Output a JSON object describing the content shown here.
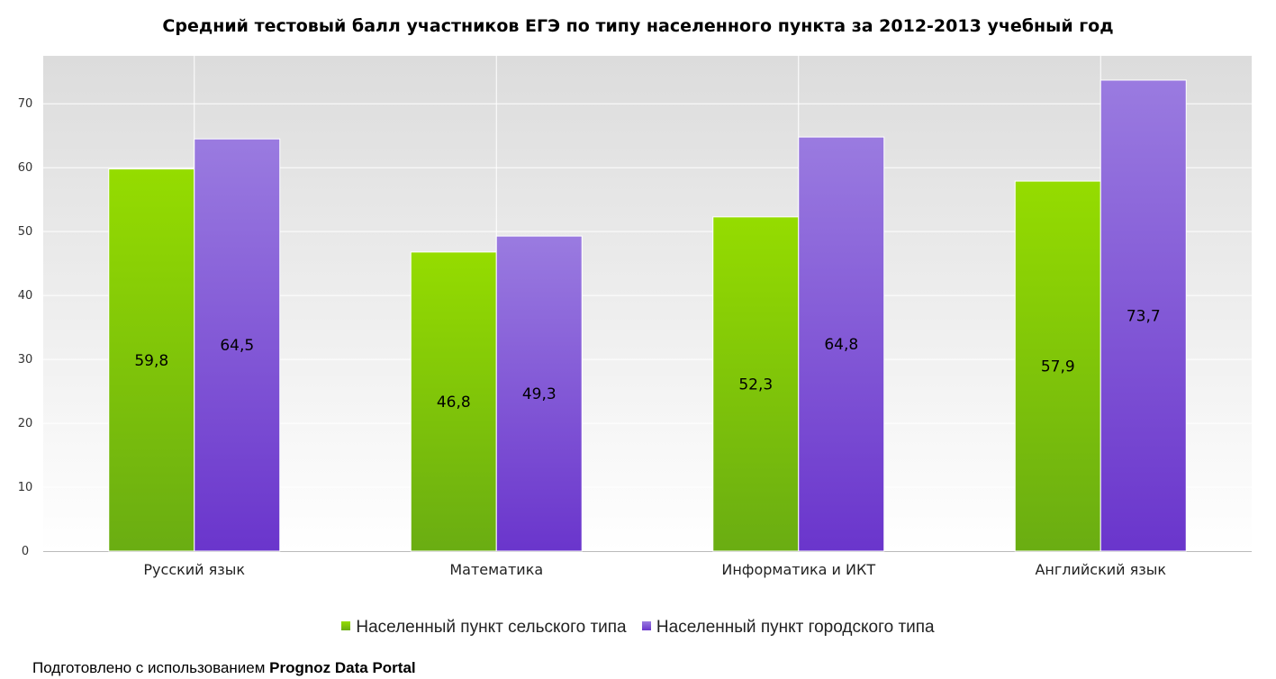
{
  "chart_data": {
    "type": "bar",
    "title": "Средний тестовый балл участников ЕГЭ по типу населенного пункта за 2012-2013 учебный год",
    "categories": [
      "Русский язык",
      "Математика",
      "Информатика и ИКТ",
      "Английский язык"
    ],
    "series": [
      {
        "name": "Населенный пункт сельского типа",
        "values": [
          59.8,
          46.8,
          52.3,
          57.9
        ],
        "labels": [
          "59,8",
          "46,8",
          "52,3",
          "57,9"
        ],
        "color_top": "#95dc00",
        "color_bottom": "#6aad12"
      },
      {
        "name": "Населенный пункт городского типа",
        "values": [
          64.5,
          49.3,
          64.8,
          73.7
        ],
        "labels": [
          "64,5",
          "49,3",
          "64,8",
          "73,7"
        ],
        "color_top": "#9a7be0",
        "color_bottom": "#6a35cc"
      }
    ],
    "yticks": [
      0,
      10,
      20,
      30,
      40,
      50,
      60,
      70
    ],
    "ylim": [
      0,
      77.5
    ],
    "grid": true,
    "legend_position": "bottom-center",
    "plot_background_top": "#dcdcdc",
    "plot_background_bottom": "#ffffff"
  },
  "footer": {
    "prefix": "Подготовлено с использованием ",
    "brand": "Prognoz Data Portal"
  }
}
